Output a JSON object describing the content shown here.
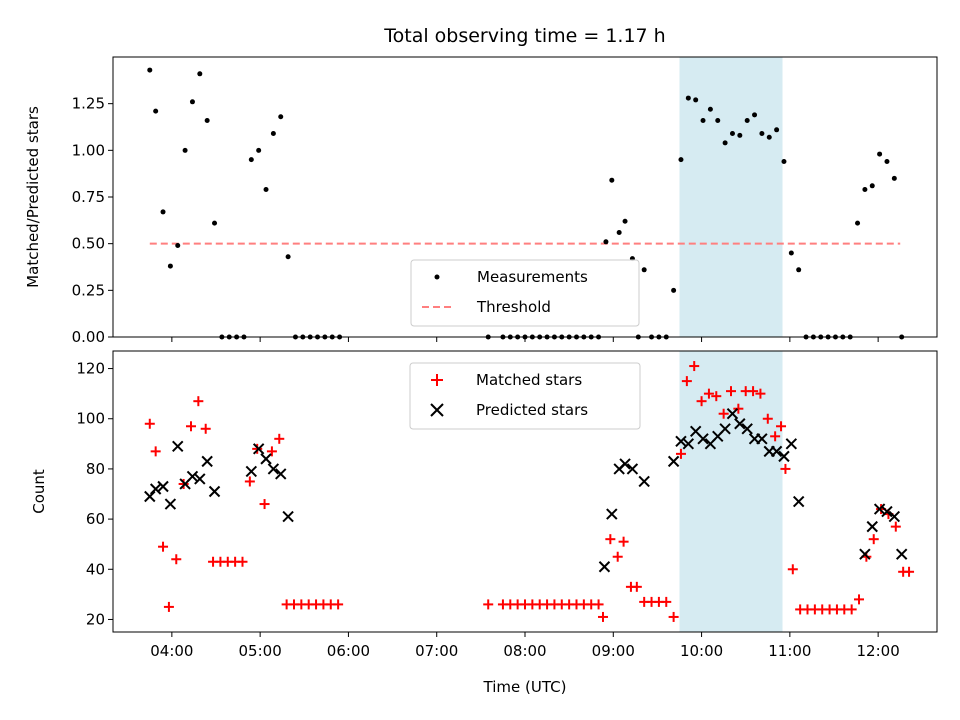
{
  "title": "Total observing time = 1.17 h",
  "xlabel": "Time (UTC)",
  "chart_data": [
    {
      "type": "scatter",
      "ylabel": "Matched/Predicted stars",
      "x_unit": "minutes since 00:00 UTC",
      "xlim": [
        200,
        760
      ],
      "ylim": [
        0,
        1.5
      ],
      "yticks": [
        0,
        0.25,
        0.5,
        0.75,
        1.0,
        1.25
      ],
      "ytick_labels": [
        "0.00",
        "0.25",
        "0.50",
        "0.75",
        "1.00",
        "1.25"
      ],
      "highlight_span": {
        "x_start": 585,
        "x_end": 655,
        "color": "#add8e6"
      },
      "threshold": {
        "name": "Threshold",
        "y": 0.5,
        "x_start": 225,
        "x_end": 735,
        "color": "#ff7f7f"
      },
      "series": [
        {
          "name": "Measurements",
          "color": "#000000",
          "marker": "dot",
          "points": [
            [
              225,
              1.43
            ],
            [
              229,
              1.21
            ],
            [
              234,
              0.67
            ],
            [
              239,
              0.38
            ],
            [
              244,
              0.49
            ],
            [
              249,
              1.0
            ],
            [
              254,
              1.26
            ],
            [
              259,
              1.41
            ],
            [
              264,
              1.16
            ],
            [
              269,
              0.61
            ],
            [
              274,
              0
            ],
            [
              279,
              0
            ],
            [
              284,
              0
            ],
            [
              289,
              0
            ],
            [
              294,
              0.95
            ],
            [
              299,
              1.0
            ],
            [
              304,
              0.79
            ],
            [
              309,
              1.09
            ],
            [
              314,
              1.18
            ],
            [
              319,
              0.43
            ],
            [
              324,
              0
            ],
            [
              329,
              0
            ],
            [
              334,
              0
            ],
            [
              339,
              0
            ],
            [
              344,
              0
            ],
            [
              349,
              0
            ],
            [
              354,
              0
            ],
            [
              455,
              0
            ],
            [
              465,
              0
            ],
            [
              470,
              0
            ],
            [
              475,
              0
            ],
            [
              480,
              0
            ],
            [
              485,
              0
            ],
            [
              490,
              0
            ],
            [
              495,
              0
            ],
            [
              500,
              0
            ],
            [
              505,
              0
            ],
            [
              510,
              0
            ],
            [
              515,
              0
            ],
            [
              520,
              0
            ],
            [
              525,
              0
            ],
            [
              530,
              0
            ],
            [
              535,
              0.51
            ],
            [
              539,
              0.84
            ],
            [
              544,
              0.56
            ],
            [
              548,
              0.62
            ],
            [
              553,
              0.42
            ],
            [
              557,
              0
            ],
            [
              561,
              0.36
            ],
            [
              566,
              0
            ],
            [
              571,
              0
            ],
            [
              576,
              0
            ],
            [
              581,
              0.25
            ],
            [
              586,
              0.95
            ],
            [
              591,
              1.28
            ],
            [
              596,
              1.27
            ],
            [
              601,
              1.16
            ],
            [
              606,
              1.22
            ],
            [
              611,
              1.16
            ],
            [
              616,
              1.04
            ],
            [
              621,
              1.09
            ],
            [
              626,
              1.08
            ],
            [
              631,
              1.16
            ],
            [
              636,
              1.19
            ],
            [
              641,
              1.09
            ],
            [
              646,
              1.07
            ],
            [
              651,
              1.11
            ],
            [
              656,
              0.94
            ],
            [
              661,
              0.45
            ],
            [
              666,
              0.36
            ],
            [
              671,
              0
            ],
            [
              676,
              0
            ],
            [
              681,
              0
            ],
            [
              686,
              0
            ],
            [
              691,
              0
            ],
            [
              696,
              0
            ],
            [
              701,
              0
            ],
            [
              706,
              0.61
            ],
            [
              711,
              0.79
            ],
            [
              716,
              0.81
            ],
            [
              721,
              0.98
            ],
            [
              726,
              0.94
            ],
            [
              731,
              0.85
            ],
            [
              736,
              0
            ]
          ]
        }
      ],
      "legend": {
        "position": "lower-center"
      }
    },
    {
      "type": "scatter",
      "ylabel": "Count",
      "x_unit": "minutes since 00:00 UTC",
      "xlim": [
        200,
        760
      ],
      "ylim": [
        15,
        127
      ],
      "yticks": [
        20,
        40,
        60,
        80,
        100,
        120
      ],
      "ytick_labels": [
        "20",
        "40",
        "60",
        "80",
        "100",
        "120"
      ],
      "xticks": [
        240,
        300,
        360,
        420,
        480,
        540,
        600,
        660,
        720
      ],
      "xtick_labels": [
        "04:00",
        "05:00",
        "06:00",
        "07:00",
        "08:00",
        "09:00",
        "10:00",
        "11:00",
        "12:00"
      ],
      "highlight_span": {
        "x_start": 585,
        "x_end": 655,
        "color": "#add8e6"
      },
      "series": [
        {
          "name": "Matched stars",
          "color": "#ff0000",
          "marker": "plus",
          "points": [
            [
              225,
              98
            ],
            [
              229,
              87
            ],
            [
              234,
              49
            ],
            [
              238,
              25
            ],
            [
              243,
              44
            ],
            [
              248,
              74
            ],
            [
              253,
              97
            ],
            [
              258,
              107
            ],
            [
              263,
              96
            ],
            [
              268,
              43
            ],
            [
              273,
              43
            ],
            [
              278,
              43
            ],
            [
              283,
              43
            ],
            [
              288,
              43
            ],
            [
              293,
              75
            ],
            [
              298,
              88
            ],
            [
              303,
              66
            ],
            [
              308,
              87
            ],
            [
              313,
              92
            ],
            [
              318,
              26
            ],
            [
              323,
              26
            ],
            [
              328,
              26
            ],
            [
              333,
              26
            ],
            [
              338,
              26
            ],
            [
              343,
              26
            ],
            [
              348,
              26
            ],
            [
              353,
              26
            ],
            [
              455,
              26
            ],
            [
              465,
              26
            ],
            [
              470,
              26
            ],
            [
              475,
              26
            ],
            [
              480,
              26
            ],
            [
              485,
              26
            ],
            [
              490,
              26
            ],
            [
              495,
              26
            ],
            [
              500,
              26
            ],
            [
              505,
              26
            ],
            [
              510,
              26
            ],
            [
              515,
              26
            ],
            [
              520,
              26
            ],
            [
              525,
              26
            ],
            [
              530,
              26
            ],
            [
              533,
              21
            ],
            [
              538,
              52
            ],
            [
              543,
              45
            ],
            [
              547,
              51
            ],
            [
              552,
              33
            ],
            [
              556,
              33
            ],
            [
              561,
              27
            ],
            [
              566,
              27
            ],
            [
              571,
              27
            ],
            [
              576,
              27
            ],
            [
              581,
              21
            ],
            [
              586,
              86
            ],
            [
              590,
              115
            ],
            [
              595,
              121
            ],
            [
              600,
              107
            ],
            [
              605,
              110
            ],
            [
              610,
              109
            ],
            [
              615,
              102
            ],
            [
              620,
              111
            ],
            [
              625,
              104
            ],
            [
              630,
              111
            ],
            [
              635,
              111
            ],
            [
              640,
              110
            ],
            [
              645,
              100
            ],
            [
              650,
              93
            ],
            [
              654,
              97
            ],
            [
              657,
              80
            ],
            [
              662,
              40
            ],
            [
              667,
              24
            ],
            [
              672,
              24
            ],
            [
              677,
              24
            ],
            [
              682,
              24
            ],
            [
              687,
              24
            ],
            [
              692,
              24
            ],
            [
              697,
              24
            ],
            [
              702,
              24
            ],
            [
              707,
              28
            ],
            [
              712,
              45
            ],
            [
              717,
              52
            ],
            [
              722,
              64
            ],
            [
              727,
              62
            ],
            [
              732,
              57
            ],
            [
              737,
              39
            ],
            [
              741,
              39
            ]
          ]
        },
        {
          "name": "Predicted stars",
          "color": "#000000",
          "marker": "x",
          "points": [
            [
              225,
              69
            ],
            [
              229,
              72
            ],
            [
              234,
              73
            ],
            [
              239,
              66
            ],
            [
              244,
              89
            ],
            [
              249,
              74
            ],
            [
              254,
              77
            ],
            [
              259,
              76
            ],
            [
              264,
              83
            ],
            [
              269,
              71
            ],
            [
              294,
              79
            ],
            [
              299,
              88
            ],
            [
              304,
              84
            ],
            [
              309,
              80
            ],
            [
              314,
              78
            ],
            [
              319,
              61
            ],
            [
              534,
              41
            ],
            [
              539,
              62
            ],
            [
              544,
              80
            ],
            [
              548,
              82
            ],
            [
              553,
              80
            ],
            [
              561,
              75
            ],
            [
              581,
              83
            ],
            [
              586,
              91
            ],
            [
              591,
              90
            ],
            [
              596,
              95
            ],
            [
              601,
              92
            ],
            [
              606,
              90
            ],
            [
              611,
              93
            ],
            [
              616,
              96
            ],
            [
              621,
              102
            ],
            [
              626,
              98
            ],
            [
              631,
              96
            ],
            [
              636,
              92
            ],
            [
              641,
              92
            ],
            [
              646,
              87
            ],
            [
              651,
              87
            ],
            [
              656,
              85
            ],
            [
              661,
              90
            ],
            [
              666,
              67
            ],
            [
              711,
              46
            ],
            [
              716,
              57
            ],
            [
              721,
              64
            ],
            [
              726,
              63
            ],
            [
              731,
              61
            ],
            [
              736,
              46
            ]
          ]
        }
      ],
      "legend": {
        "position": "upper-center"
      }
    }
  ]
}
